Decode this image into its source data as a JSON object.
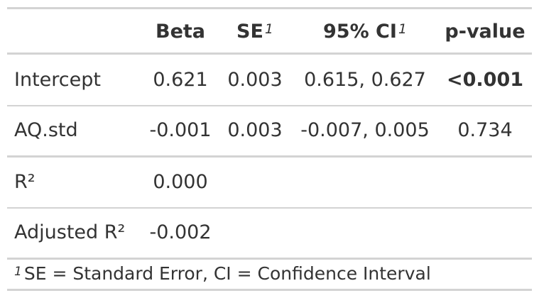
{
  "table": {
    "headers": {
      "beta": "Beta",
      "se": "SE",
      "se_note": "1",
      "ci": "95% CI",
      "ci_note": "1",
      "p": "p-value"
    },
    "rows": [
      {
        "label": "Intercept",
        "beta": "0.621",
        "se": "0.003",
        "ci": "0.615, 0.627",
        "p": "<0.001"
      },
      {
        "label": "AQ.std",
        "beta": "-0.001",
        "se": "0.003",
        "ci": "-0.007, 0.005",
        "p": "0.734"
      },
      {
        "label": "R²",
        "beta": "0.000"
      },
      {
        "label": "Adjusted R²",
        "beta": "-0.002"
      }
    ],
    "footnote": {
      "marker": "1",
      "text": "SE = Standard Error, CI = Confidence Interval"
    }
  }
}
